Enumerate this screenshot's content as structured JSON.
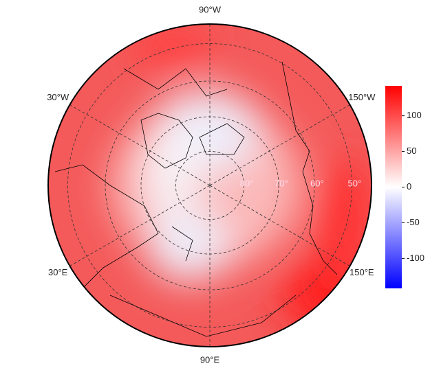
{
  "map": {
    "meridians": [
      {
        "value": -90,
        "label": "90°W"
      },
      {
        "value": -30,
        "label": "30°W"
      },
      {
        "value": -150,
        "label": "150°W"
      },
      {
        "value": 30,
        "label": "30°E"
      },
      {
        "value": 150,
        "label": "150°E"
      },
      {
        "value": 90,
        "label": "90°E"
      }
    ],
    "parallels": [
      {
        "value": 80,
        "label": "80°"
      },
      {
        "value": 70,
        "label": "70°"
      },
      {
        "value": 60,
        "label": "60°"
      },
      {
        "value": 50,
        "label": "50°"
      }
    ],
    "edge_lat": 45
  },
  "colorbar": {
    "lim": [
      -142,
      142
    ],
    "ticks": [
      100,
      50,
      0,
      -50,
      -100
    ],
    "colors": [
      "#0000ff",
      "#ffffff",
      "#ff0000"
    ]
  }
}
